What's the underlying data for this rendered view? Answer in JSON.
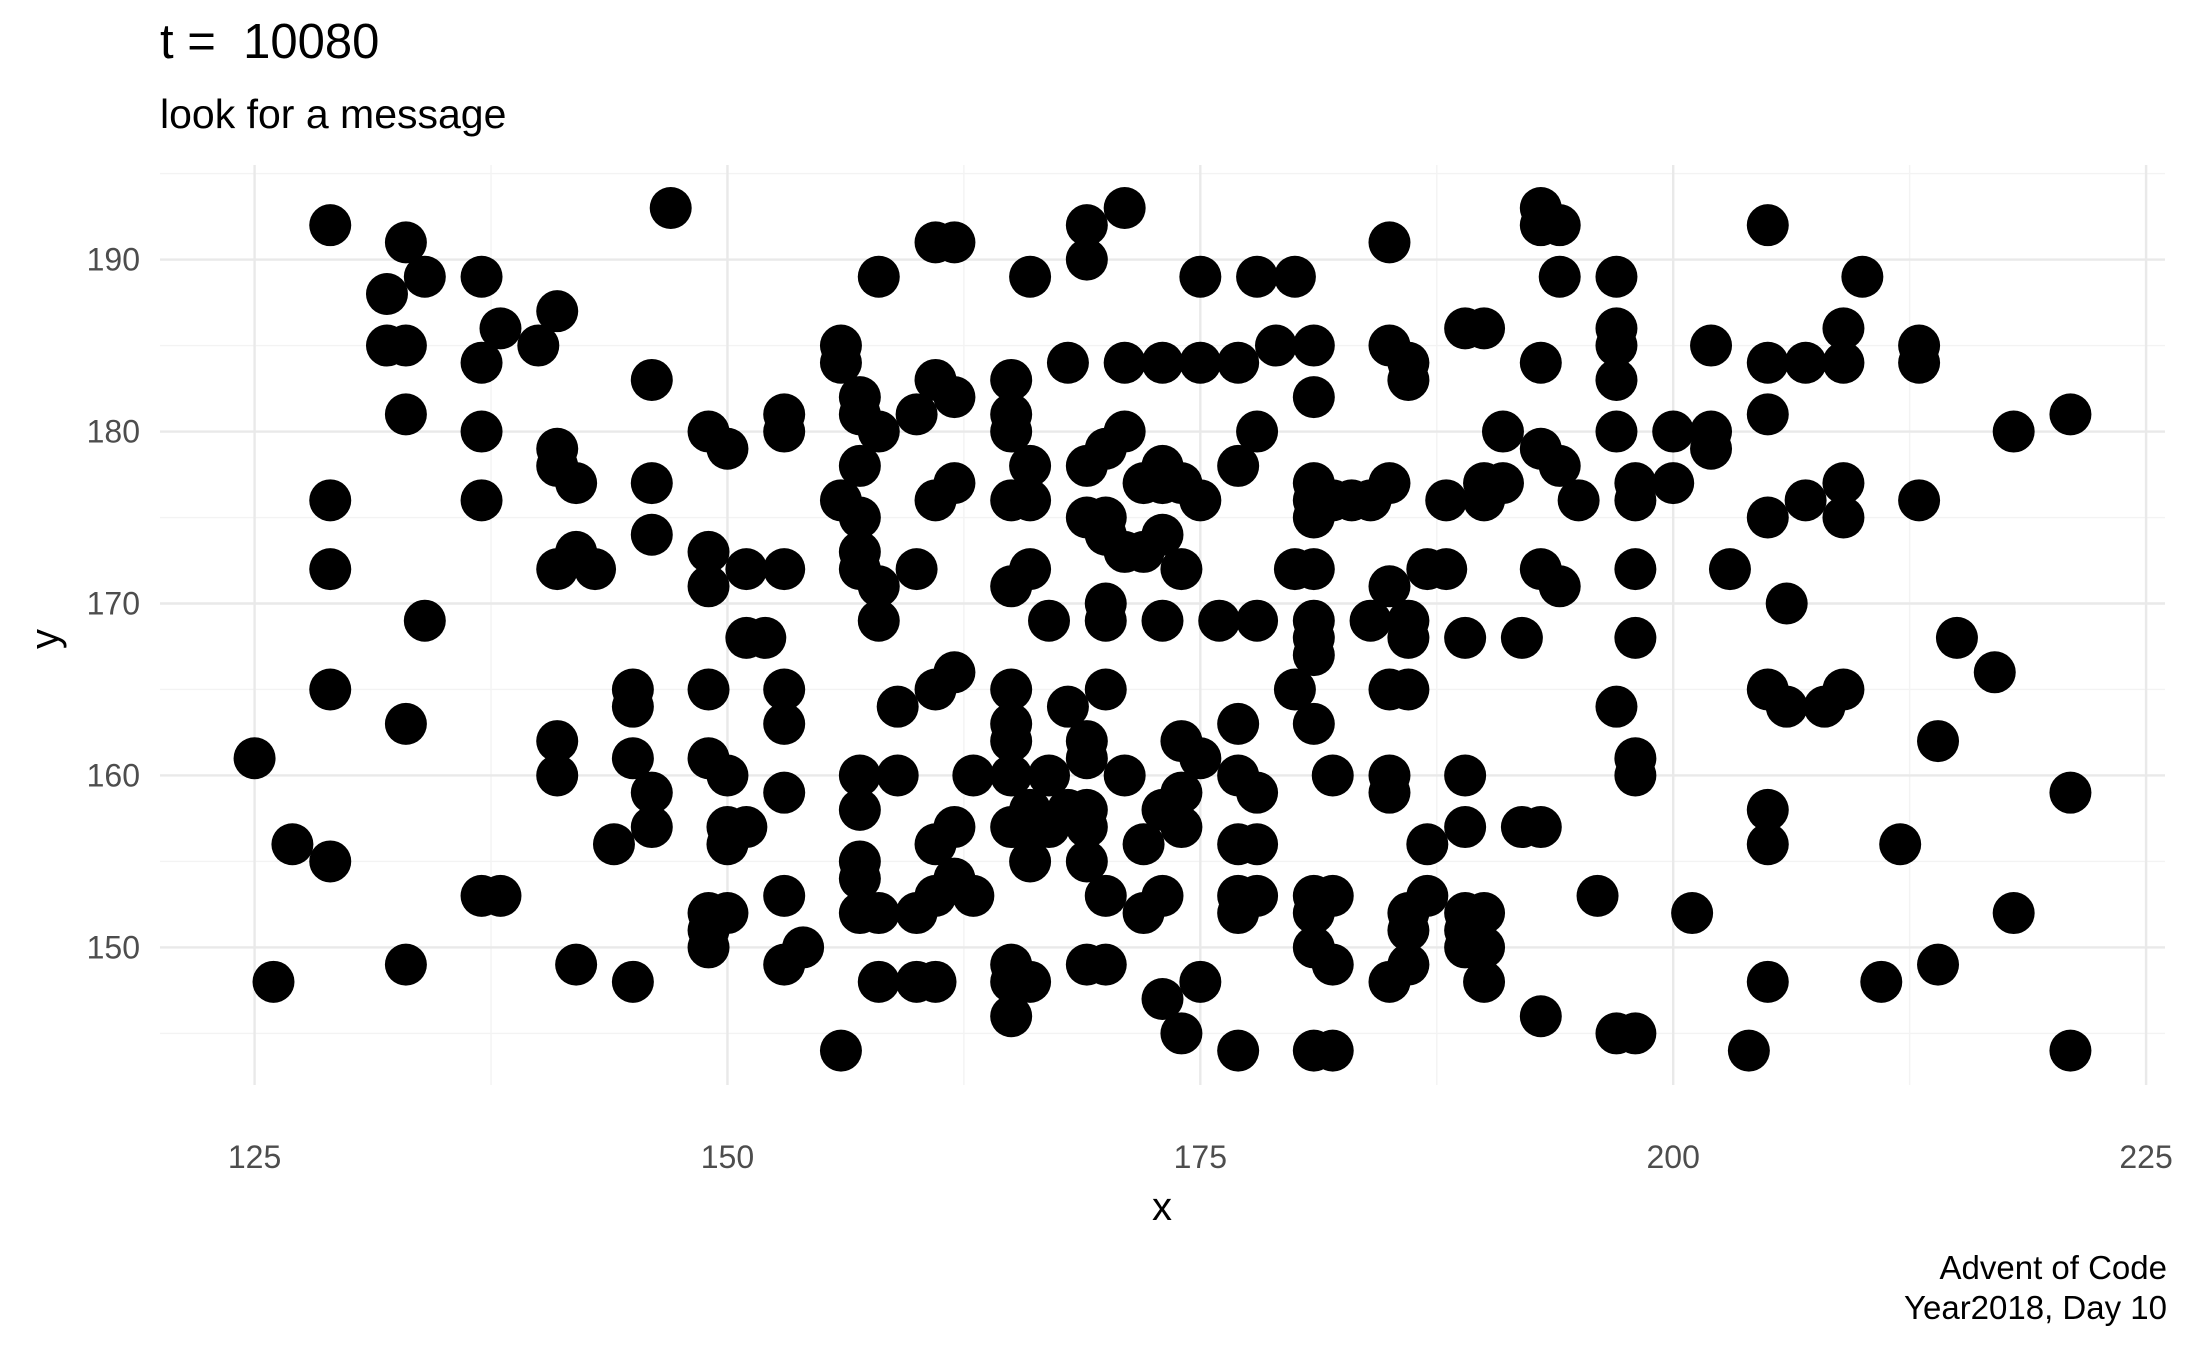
{
  "chart_data": {
    "type": "scatter",
    "title": "t =  10080",
    "subtitle": "look for a message",
    "xlabel": "x",
    "ylabel": "y",
    "xlim": [
      120,
      226
    ],
    "ylim": [
      142,
      195.5
    ],
    "x_ticks": [
      125,
      150,
      175,
      200,
      225
    ],
    "y_ticks": [
      150,
      160,
      170,
      180,
      190
    ],
    "grid": true,
    "marker_color": "#000000",
    "caption_line1": "Advent of Code",
    "caption_line2": "Year2018, Day 10",
    "points": [
      [
        125,
        161
      ],
      [
        126,
        148
      ],
      [
        127,
        156
      ],
      [
        129,
        192
      ],
      [
        129,
        176
      ],
      [
        129,
        172
      ],
      [
        129,
        165
      ],
      [
        129,
        155
      ],
      [
        132,
        188
      ],
      [
        132,
        185
      ],
      [
        133,
        191
      ],
      [
        133,
        185
      ],
      [
        133,
        181
      ],
      [
        133,
        163
      ],
      [
        133,
        149
      ],
      [
        134,
        189
      ],
      [
        134,
        169
      ],
      [
        137,
        189
      ],
      [
        137,
        184
      ],
      [
        137,
        180
      ],
      [
        137,
        176
      ],
      [
        137,
        153
      ],
      [
        138,
        186
      ],
      [
        138,
        153
      ],
      [
        140,
        185
      ],
      [
        141,
        187
      ],
      [
        141,
        179
      ],
      [
        141,
        178
      ],
      [
        141,
        172
      ],
      [
        141,
        162
      ],
      [
        141,
        160
      ],
      [
        142,
        177
      ],
      [
        142,
        173
      ],
      [
        142,
        149
      ],
      [
        143,
        172
      ],
      [
        144,
        156
      ],
      [
        145,
        165
      ],
      [
        145,
        164
      ],
      [
        145,
        161
      ],
      [
        145,
        148
      ],
      [
        146,
        183
      ],
      [
        146,
        177
      ],
      [
        146,
        174
      ],
      [
        146,
        159
      ],
      [
        146,
        157
      ],
      [
        147,
        193
      ],
      [
        149,
        180
      ],
      [
        149,
        173
      ],
      [
        149,
        171
      ],
      [
        149,
        165
      ],
      [
        149,
        161
      ],
      [
        149,
        152
      ],
      [
        149,
        151
      ],
      [
        149,
        150
      ],
      [
        150,
        179
      ],
      [
        150,
        160
      ],
      [
        150,
        157
      ],
      [
        150,
        156
      ],
      [
        150,
        152
      ],
      [
        151,
        172
      ],
      [
        151,
        168
      ],
      [
        151,
        157
      ],
      [
        152,
        168
      ],
      [
        153,
        181
      ],
      [
        153,
        180
      ],
      [
        153,
        172
      ],
      [
        153,
        165
      ],
      [
        153,
        163
      ],
      [
        153,
        159
      ],
      [
        153,
        153
      ],
      [
        153,
        149
      ],
      [
        154,
        150
      ],
      [
        156,
        185
      ],
      [
        156,
        184
      ],
      [
        156,
        176
      ],
      [
        156,
        144
      ],
      [
        157,
        182
      ],
      [
        157,
        181
      ],
      [
        157,
        178
      ],
      [
        157,
        175
      ],
      [
        157,
        173
      ],
      [
        157,
        172
      ],
      [
        157,
        160
      ],
      [
        157,
        158
      ],
      [
        157,
        155
      ],
      [
        157,
        154
      ],
      [
        157,
        152
      ],
      [
        158,
        189
      ],
      [
        158,
        180
      ],
      [
        158,
        171
      ],
      [
        158,
        169
      ],
      [
        158,
        152
      ],
      [
        158,
        148
      ],
      [
        159,
        164
      ],
      [
        159,
        160
      ],
      [
        160,
        181
      ],
      [
        160,
        172
      ],
      [
        160,
        152
      ],
      [
        160,
        148
      ],
      [
        161,
        191
      ],
      [
        161,
        183
      ],
      [
        161,
        176
      ],
      [
        161,
        165
      ],
      [
        161,
        156
      ],
      [
        161,
        153
      ],
      [
        161,
        148
      ],
      [
        162,
        191
      ],
      [
        162,
        182
      ],
      [
        162,
        177
      ],
      [
        162,
        166
      ],
      [
        162,
        157
      ],
      [
        162,
        154
      ],
      [
        163,
        160
      ],
      [
        163,
        153
      ],
      [
        165,
        183
      ],
      [
        165,
        181
      ],
      [
        165,
        180
      ],
      [
        165,
        176
      ],
      [
        165,
        171
      ],
      [
        165,
        165
      ],
      [
        165,
        163
      ],
      [
        165,
        162
      ],
      [
        165,
        160
      ],
      [
        165,
        157
      ],
      [
        165,
        149
      ],
      [
        165,
        148
      ],
      [
        165,
        146
      ],
      [
        166,
        189
      ],
      [
        166,
        178
      ],
      [
        166,
        176
      ],
      [
        166,
        172
      ],
      [
        166,
        158
      ],
      [
        166,
        157
      ],
      [
        166,
        155
      ],
      [
        166,
        148
      ],
      [
        167,
        169
      ],
      [
        167,
        160
      ],
      [
        167,
        157
      ],
      [
        168,
        184
      ],
      [
        168,
        164
      ],
      [
        168,
        158
      ],
      [
        169,
        192
      ],
      [
        169,
        190
      ],
      [
        169,
        178
      ],
      [
        169,
        175
      ],
      [
        169,
        162
      ],
      [
        169,
        161
      ],
      [
        169,
        158
      ],
      [
        169,
        157
      ],
      [
        169,
        155
      ],
      [
        169,
        149
      ],
      [
        170,
        179
      ],
      [
        170,
        175
      ],
      [
        170,
        174
      ],
      [
        170,
        170
      ],
      [
        170,
        169
      ],
      [
        170,
        165
      ],
      [
        170,
        153
      ],
      [
        170,
        149
      ],
      [
        171,
        193
      ],
      [
        171,
        184
      ],
      [
        171,
        180
      ],
      [
        171,
        173
      ],
      [
        171,
        160
      ],
      [
        172,
        177
      ],
      [
        172,
        173
      ],
      [
        172,
        156
      ],
      [
        172,
        152
      ],
      [
        173,
        184
      ],
      [
        173,
        178
      ],
      [
        173,
        177
      ],
      [
        173,
        174
      ],
      [
        173,
        169
      ],
      [
        173,
        158
      ],
      [
        173,
        153
      ],
      [
        173,
        147
      ],
      [
        174,
        177
      ],
      [
        174,
        172
      ],
      [
        174,
        162
      ],
      [
        174,
        159
      ],
      [
        174,
        157
      ],
      [
        174,
        145
      ],
      [
        175,
        189
      ],
      [
        175,
        184
      ],
      [
        175,
        176
      ],
      [
        175,
        161
      ],
      [
        175,
        148
      ],
      [
        176,
        169
      ],
      [
        177,
        184
      ],
      [
        177,
        178
      ],
      [
        177,
        163
      ],
      [
        177,
        160
      ],
      [
        177,
        156
      ],
      [
        177,
        153
      ],
      [
        177,
        152
      ],
      [
        177,
        144
      ],
      [
        178,
        189
      ],
      [
        178,
        180
      ],
      [
        178,
        169
      ],
      [
        178,
        159
      ],
      [
        178,
        156
      ],
      [
        178,
        153
      ],
      [
        179,
        185
      ],
      [
        180,
        189
      ],
      [
        180,
        172
      ],
      [
        180,
        165
      ],
      [
        181,
        185
      ],
      [
        181,
        182
      ],
      [
        181,
        177
      ],
      [
        181,
        176
      ],
      [
        181,
        175
      ],
      [
        181,
        172
      ],
      [
        181,
        169
      ],
      [
        181,
        168
      ],
      [
        181,
        167
      ],
      [
        181,
        163
      ],
      [
        181,
        153
      ],
      [
        181,
        152
      ],
      [
        181,
        150
      ],
      [
        181,
        144
      ],
      [
        182,
        176
      ],
      [
        182,
        160
      ],
      [
        182,
        153
      ],
      [
        182,
        149
      ],
      [
        182,
        144
      ],
      [
        183,
        176
      ],
      [
        184,
        176
      ],
      [
        184,
        169
      ],
      [
        185,
        191
      ],
      [
        185,
        185
      ],
      [
        185,
        177
      ],
      [
        185,
        171
      ],
      [
        185,
        165
      ],
      [
        185,
        160
      ],
      [
        185,
        159
      ],
      [
        185,
        148
      ],
      [
        186,
        184
      ],
      [
        186,
        183
      ],
      [
        186,
        169
      ],
      [
        186,
        168
      ],
      [
        186,
        165
      ],
      [
        186,
        152
      ],
      [
        186,
        151
      ],
      [
        186,
        149
      ],
      [
        187,
        172
      ],
      [
        187,
        156
      ],
      [
        187,
        153
      ],
      [
        188,
        176
      ],
      [
        188,
        172
      ],
      [
        189,
        186
      ],
      [
        189,
        168
      ],
      [
        189,
        160
      ],
      [
        189,
        157
      ],
      [
        189,
        152
      ],
      [
        189,
        151
      ],
      [
        189,
        150
      ],
      [
        190,
        186
      ],
      [
        190,
        177
      ],
      [
        190,
        176
      ],
      [
        190,
        152
      ],
      [
        190,
        150
      ],
      [
        190,
        148
      ],
      [
        191,
        180
      ],
      [
        191,
        177
      ],
      [
        192,
        168
      ],
      [
        192,
        157
      ],
      [
        193,
        193
      ],
      [
        193,
        192
      ],
      [
        193,
        184
      ],
      [
        193,
        179
      ],
      [
        193,
        172
      ],
      [
        193,
        157
      ],
      [
        193,
        146
      ],
      [
        194,
        192
      ],
      [
        194,
        189
      ],
      [
        194,
        178
      ],
      [
        194,
        171
      ],
      [
        195,
        176
      ],
      [
        196,
        153
      ],
      [
        197,
        189
      ],
      [
        197,
        186
      ],
      [
        197,
        185
      ],
      [
        197,
        183
      ],
      [
        197,
        180
      ],
      [
        197,
        164
      ],
      [
        197,
        145
      ],
      [
        198,
        177
      ],
      [
        198,
        176
      ],
      [
        198,
        172
      ],
      [
        198,
        168
      ],
      [
        198,
        161
      ],
      [
        198,
        160
      ],
      [
        198,
        145
      ],
      [
        200,
        180
      ],
      [
        200,
        177
      ],
      [
        201,
        152
      ],
      [
        202,
        185
      ],
      [
        202,
        180
      ],
      [
        202,
        179
      ],
      [
        203,
        172
      ],
      [
        204,
        144
      ],
      [
        205,
        192
      ],
      [
        205,
        184
      ],
      [
        205,
        181
      ],
      [
        205,
        175
      ],
      [
        205,
        165
      ],
      [
        205,
        158
      ],
      [
        205,
        156
      ],
      [
        205,
        148
      ],
      [
        206,
        170
      ],
      [
        206,
        164
      ],
      [
        207,
        184
      ],
      [
        207,
        176
      ],
      [
        208,
        164
      ],
      [
        209,
        186
      ],
      [
        209,
        184
      ],
      [
        209,
        177
      ],
      [
        209,
        175
      ],
      [
        209,
        165
      ],
      [
        210,
        189
      ],
      [
        211,
        148
      ],
      [
        212,
        156
      ],
      [
        213,
        185
      ],
      [
        213,
        184
      ],
      [
        213,
        176
      ],
      [
        214,
        162
      ],
      [
        214,
        149
      ],
      [
        215,
        168
      ],
      [
        217,
        166
      ],
      [
        218,
        180
      ],
      [
        218,
        152
      ],
      [
        221,
        181
      ],
      [
        221,
        159
      ],
      [
        221,
        144
      ]
    ]
  }
}
